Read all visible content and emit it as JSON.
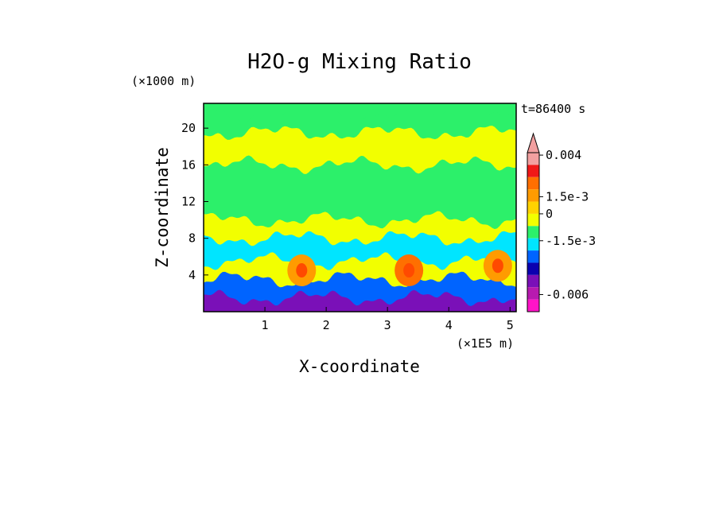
{
  "chart_data": {
    "type": "heatmap",
    "title": "H2O-g Mixing Ratio",
    "xlabel": "X-coordinate",
    "ylabel": "Z-coordinate",
    "x_unit": "(×1E5 m)",
    "y_unit": "(×1000 m)",
    "time_label": "t=86400 s",
    "xlim": [
      0,
      5.1
    ],
    "ylim": [
      0,
      22.7
    ],
    "x_ticks": [
      1,
      2,
      3,
      4,
      5
    ],
    "x_tick_labels": [
      "1",
      "2",
      "3",
      "4",
      "5"
    ],
    "y_ticks": [
      4,
      8,
      12,
      16,
      20
    ],
    "y_tick_labels": [
      "4",
      "8",
      "12",
      "16",
      "20"
    ],
    "colorbar": {
      "bins": [
        {
          "color": "#f2a0a0"
        },
        {
          "color": "#f01818"
        },
        {
          "color": "#ff6f00"
        },
        {
          "color": "#ff9b00"
        },
        {
          "color": "#ffd200"
        },
        {
          "color": "#f2ff00"
        },
        {
          "color": "#2cf06a"
        },
        {
          "color": "#00e5ff"
        },
        {
          "color": "#0064ff"
        },
        {
          "color": "#0a00b0"
        },
        {
          "color": "#7a10b8"
        },
        {
          "color": "#b81ab0"
        },
        {
          "color": "#ff14c8"
        }
      ],
      "labels": [
        "0.004",
        "1.5e-3",
        "0",
        "-1.5e-3",
        "-0.006"
      ]
    },
    "layers": [
      {
        "z": 21.5,
        "color": "#2cf06a"
      },
      {
        "z": 19.5,
        "color": "#f2ff00"
      },
      {
        "z": 16.0,
        "color": "#2cf06a"
      },
      {
        "z": 10.0,
        "color": "#f2ff00"
      },
      {
        "z": 8.0,
        "color": "#00e5ff"
      },
      {
        "z": 5.5,
        "color": "#f2ff00"
      },
      {
        "z": 3.5,
        "color": "#0064ff"
      },
      {
        "z": 1.5,
        "color": "#7a10b8"
      }
    ],
    "warm_cores": [
      {
        "x": 1.6,
        "z": 4.5,
        "color": "#ff9b00"
      },
      {
        "x": 3.35,
        "z": 4.5,
        "color": "#ff6f00"
      },
      {
        "x": 4.8,
        "z": 5.0,
        "color": "#ff9b00"
      }
    ]
  }
}
